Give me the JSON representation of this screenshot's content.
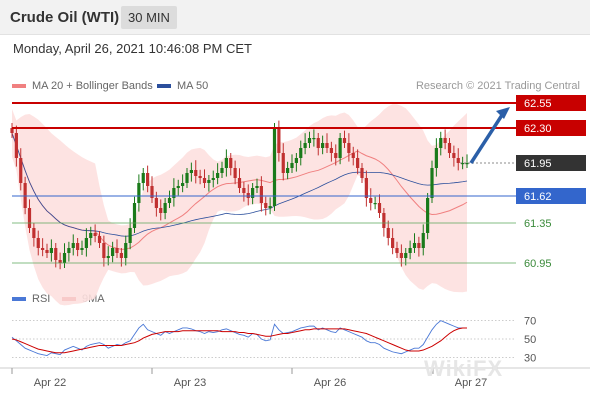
{
  "header": {
    "title": "Crude Oil (WTI)",
    "timeframe": "30 MIN"
  },
  "datetime": "Monday, April 26, 2021 10:46:08 PM CET",
  "legend": {
    "bb_label": "MA 20 + Bollinger Bands",
    "ma50_label": "MA 50",
    "rsi_label": "RSI",
    "ma9_label": "9MA"
  },
  "credit": "Research © 2021 Trading Central",
  "watermark": "WikiFX",
  "colors": {
    "red_line": "#c80000",
    "blue_line": "#3366cc",
    "green_line": "#5aa65a",
    "bb_fill": "#fde0df",
    "up_candle": "#1a7a1a",
    "down_candle": "#c03030",
    "price_box": "#333333",
    "rsi_line": "#4a78d6",
    "rsi_ma": "#cc0000"
  },
  "chart_data": {
    "type": "candlestick",
    "ylim": [
      60.8,
      62.62
    ],
    "x_ticks": [
      "Apr 22",
      "Apr 23",
      "Apr 26",
      "Apr 27"
    ],
    "levels": [
      {
        "value": 62.55,
        "label": "62.55",
        "style": "resistance"
      },
      {
        "value": 62.3,
        "label": "62.30",
        "style": "resistance"
      },
      {
        "value": 61.95,
        "label": "61.95",
        "style": "current"
      },
      {
        "value": 61.62,
        "label": "61.62",
        "style": "pivot"
      },
      {
        "value": 61.35,
        "label": "61.35",
        "style": "support"
      },
      {
        "value": 60.95,
        "label": "60.95",
        "style": "support"
      }
    ],
    "current_price": 61.95,
    "arrow": {
      "from_value": 61.95,
      "to_value": 62.55
    },
    "price_series": [
      62.25,
      62.0,
      61.75,
      61.5,
      61.3,
      61.2,
      61.1,
      61.08,
      61.05,
      61.1,
      60.98,
      60.95,
      61.05,
      61.1,
      61.15,
      61.08,
      61.1,
      61.2,
      61.25,
      61.22,
      61.15,
      61.0,
      61.02,
      61.1,
      61.05,
      61.0,
      61.15,
      61.3,
      61.55,
      61.75,
      61.85,
      61.72,
      61.6,
      61.5,
      61.45,
      61.55,
      61.6,
      61.7,
      61.72,
      61.75,
      61.85,
      61.88,
      61.82,
      61.8,
      61.75,
      61.78,
      61.8,
      61.85,
      61.9,
      62.0,
      61.9,
      61.8,
      61.7,
      61.65,
      61.6,
      61.7,
      61.72,
      61.55,
      61.5,
      61.52,
      62.3,
      62.05,
      61.85,
      61.9,
      61.95,
      62.0,
      62.1,
      62.15,
      62.2,
      62.2,
      62.1,
      62.15,
      62.1,
      62.05,
      62.0,
      62.2,
      62.15,
      62.05,
      62.0,
      61.9,
      61.8,
      61.6,
      61.55,
      61.55,
      61.45,
      61.3,
      61.2,
      61.1,
      61.05,
      61.0,
      61.05,
      61.1,
      61.15,
      61.1,
      61.25,
      61.6,
      61.9,
      62.1,
      62.2,
      62.15,
      62.05,
      62.0,
      61.95,
      61.95,
      61.95
    ],
    "rsi": {
      "y_ticks": [
        70,
        50,
        30
      ],
      "series": [
        52,
        48,
        44,
        40,
        38,
        36,
        34,
        33,
        32,
        35,
        34,
        33,
        38,
        40,
        42,
        40,
        38,
        42,
        44,
        45,
        46,
        44,
        40,
        42,
        44,
        43,
        46,
        48,
        55,
        62,
        66,
        60,
        58,
        56,
        54,
        58,
        56,
        58,
        60,
        62,
        62,
        61,
        59,
        58,
        56,
        58,
        57,
        58,
        60,
        61,
        59,
        57,
        55,
        54,
        52,
        56,
        55,
        50,
        48,
        49,
        66,
        60,
        56,
        57,
        58,
        60,
        62,
        63,
        64,
        64,
        60,
        62,
        60,
        58,
        57,
        62,
        60,
        58,
        56,
        54,
        52,
        48,
        46,
        46,
        44,
        40,
        38,
        36,
        35,
        34,
        36,
        38,
        40,
        40,
        44,
        52,
        60,
        66,
        70,
        68,
        66,
        64,
        62,
        62,
        62
      ],
      "ma9": [
        50,
        49,
        47,
        45,
        43,
        41,
        39,
        38,
        37,
        36,
        35,
        35,
        35,
        36,
        37,
        38,
        39,
        40,
        41,
        42,
        43,
        43,
        43,
        43,
        43,
        43,
        44,
        45,
        46,
        48,
        51,
        53,
        55,
        56,
        57,
        58,
        58,
        58,
        58,
        59,
        59,
        59,
        59,
        59,
        59,
        59,
        59,
        59,
        58,
        58,
        58,
        58,
        57,
        57,
        56,
        56,
        55,
        54,
        53,
        53,
        54,
        55,
        56,
        56,
        57,
        58,
        59,
        60,
        60,
        61,
        61,
        61,
        61,
        61,
        61,
        61,
        61,
        60,
        59,
        58,
        57,
        56,
        54,
        52,
        50,
        48,
        46,
        44,
        42,
        40,
        38,
        37,
        37,
        37,
        38,
        40,
        42,
        45,
        48,
        52,
        56,
        59,
        61,
        62,
        62
      ]
    }
  }
}
